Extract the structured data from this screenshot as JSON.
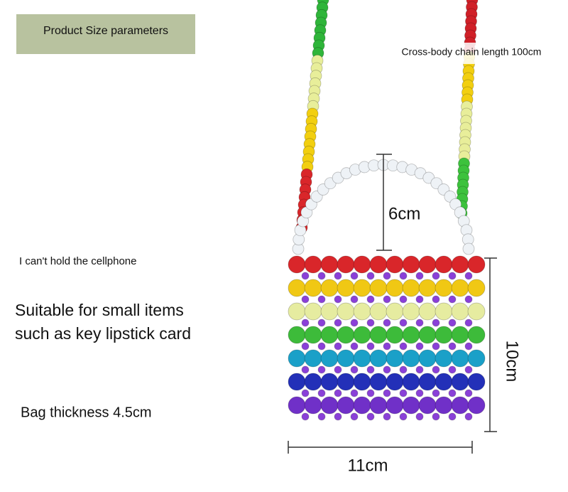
{
  "header": {
    "title": "Product Size parameters"
  },
  "annotations": {
    "chain_length": "Cross-body chain length 100cm",
    "handle_height": "6cm",
    "cellphone_note": "I can't hold the cellphone",
    "suitable_lines": [
      "Suitable for small items",
      "such as key lipstick card"
    ],
    "thickness": "Bag thickness 4.5cm",
    "height": "10cm",
    "width": "11cm"
  }
}
